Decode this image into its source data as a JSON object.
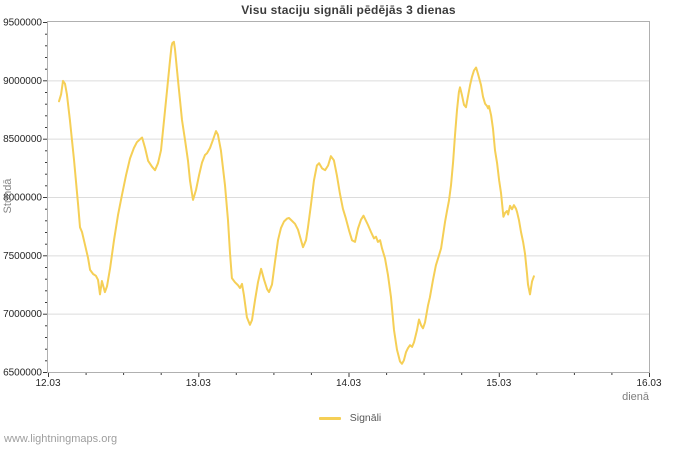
{
  "watermark": "www.lightningmaps.org",
  "chart_data": {
    "type": "line",
    "title": "Visu staciju signāli pēdējās 3 dienas",
    "ylabel": "Stundā",
    "xlabel": "dienā",
    "legend_position": "bottom-center",
    "grid": "horizontal",
    "xlim": [
      0,
      4
    ],
    "ylim": [
      6500000,
      9500000
    ],
    "x_tick_labels": [
      "12.03",
      "13.03",
      "14.03",
      "15.03",
      "16.03"
    ],
    "x_major_step": 1,
    "x_minor_step": 0.25,
    "y_major_step": 500000,
    "y_minor_step": 100000,
    "colors": {
      "line": "#f5cf56",
      "grid": "#dcdcdc",
      "border": "#b0b0b0",
      "tick": "#3a3a3a",
      "tick_label": "#262626"
    },
    "series": [
      {
        "name": "Signāli",
        "color": "#f5cf56",
        "points": [
          [
            0.073,
            8820000
          ],
          [
            0.087,
            8880000
          ],
          [
            0.1,
            8995000
          ],
          [
            0.113,
            8970000
          ],
          [
            0.126,
            8880000
          ],
          [
            0.146,
            8660000
          ],
          [
            0.173,
            8320000
          ],
          [
            0.2,
            7935000
          ],
          [
            0.213,
            7740000
          ],
          [
            0.226,
            7700000
          ],
          [
            0.246,
            7590000
          ],
          [
            0.266,
            7480000
          ],
          [
            0.28,
            7375000
          ],
          [
            0.3,
            7340000
          ],
          [
            0.319,
            7325000
          ],
          [
            0.333,
            7290000
          ],
          [
            0.346,
            7165000
          ],
          [
            0.359,
            7280000
          ],
          [
            0.379,
            7185000
          ],
          [
            0.393,
            7235000
          ],
          [
            0.413,
            7390000
          ],
          [
            0.439,
            7630000
          ],
          [
            0.466,
            7845000
          ],
          [
            0.492,
            8015000
          ],
          [
            0.519,
            8185000
          ],
          [
            0.546,
            8330000
          ],
          [
            0.572,
            8420000
          ],
          [
            0.592,
            8470000
          ],
          [
            0.612,
            8495000
          ],
          [
            0.626,
            8510000
          ],
          [
            0.646,
            8420000
          ],
          [
            0.666,
            8310000
          ],
          [
            0.692,
            8260000
          ],
          [
            0.712,
            8230000
          ],
          [
            0.732,
            8290000
          ],
          [
            0.752,
            8400000
          ],
          [
            0.772,
            8655000
          ],
          [
            0.792,
            8910000
          ],
          [
            0.812,
            9170000
          ],
          [
            0.822,
            9290000
          ],
          [
            0.828,
            9320000
          ],
          [
            0.838,
            9330000
          ],
          [
            0.845,
            9265000
          ],
          [
            0.865,
            9000000
          ],
          [
            0.892,
            8660000
          ],
          [
            0.912,
            8490000
          ],
          [
            0.932,
            8310000
          ],
          [
            0.945,
            8140000
          ],
          [
            0.965,
            7975000
          ],
          [
            0.985,
            8060000
          ],
          [
            1.005,
            8185000
          ],
          [
            1.025,
            8295000
          ],
          [
            1.045,
            8360000
          ],
          [
            1.058,
            8375000
          ],
          [
            1.078,
            8420000
          ],
          [
            1.098,
            8490000
          ],
          [
            1.118,
            8565000
          ],
          [
            1.131,
            8535000
          ],
          [
            1.151,
            8400000
          ],
          [
            1.178,
            8100000
          ],
          [
            1.198,
            7800000
          ],
          [
            1.211,
            7520000
          ],
          [
            1.224,
            7305000
          ],
          [
            1.244,
            7270000
          ],
          [
            1.264,
            7245000
          ],
          [
            1.278,
            7220000
          ],
          [
            1.291,
            7255000
          ],
          [
            1.304,
            7160000
          ],
          [
            1.324,
            6970000
          ],
          [
            1.344,
            6905000
          ],
          [
            1.358,
            6945000
          ],
          [
            1.378,
            7115000
          ],
          [
            1.398,
            7270000
          ],
          [
            1.418,
            7385000
          ],
          [
            1.438,
            7290000
          ],
          [
            1.458,
            7210000
          ],
          [
            1.471,
            7185000
          ],
          [
            1.491,
            7250000
          ],
          [
            1.511,
            7445000
          ],
          [
            1.531,
            7630000
          ],
          [
            1.551,
            7735000
          ],
          [
            1.571,
            7790000
          ],
          [
            1.591,
            7815000
          ],
          [
            1.604,
            7820000
          ],
          [
            1.624,
            7795000
          ],
          [
            1.644,
            7770000
          ],
          [
            1.664,
            7720000
          ],
          [
            1.684,
            7630000
          ],
          [
            1.697,
            7570000
          ],
          [
            1.717,
            7630000
          ],
          [
            1.73,
            7735000
          ],
          [
            1.75,
            7930000
          ],
          [
            1.77,
            8140000
          ],
          [
            1.79,
            8270000
          ],
          [
            1.804,
            8290000
          ],
          [
            1.824,
            8245000
          ],
          [
            1.844,
            8230000
          ],
          [
            1.864,
            8270000
          ],
          [
            1.883,
            8350000
          ],
          [
            1.903,
            8315000
          ],
          [
            1.923,
            8185000
          ],
          [
            1.943,
            8030000
          ],
          [
            1.963,
            7900000
          ],
          [
            1.983,
            7815000
          ],
          [
            2.003,
            7715000
          ],
          [
            2.023,
            7630000
          ],
          [
            2.043,
            7615000
          ],
          [
            2.063,
            7730000
          ],
          [
            2.083,
            7805000
          ],
          [
            2.1,
            7840000
          ],
          [
            2.13,
            7760000
          ],
          [
            2.15,
            7700000
          ],
          [
            2.17,
            7645000
          ],
          [
            2.183,
            7660000
          ],
          [
            2.196,
            7615000
          ],
          [
            2.21,
            7630000
          ],
          [
            2.223,
            7560000
          ],
          [
            2.243,
            7475000
          ],
          [
            2.263,
            7330000
          ],
          [
            2.283,
            7140000
          ],
          [
            2.303,
            6860000
          ],
          [
            2.323,
            6690000
          ],
          [
            2.343,
            6590000
          ],
          [
            2.356,
            6570000
          ],
          [
            2.369,
            6600000
          ],
          [
            2.383,
            6670000
          ],
          [
            2.396,
            6705000
          ],
          [
            2.409,
            6730000
          ],
          [
            2.423,
            6715000
          ],
          [
            2.436,
            6755000
          ],
          [
            2.456,
            6860000
          ],
          [
            2.469,
            6950000
          ],
          [
            2.483,
            6900000
          ],
          [
            2.496,
            6875000
          ],
          [
            2.509,
            6925000
          ],
          [
            2.529,
            7070000
          ],
          [
            2.542,
            7140000
          ],
          [
            2.562,
            7285000
          ],
          [
            2.582,
            7415000
          ],
          [
            2.602,
            7500000
          ],
          [
            2.616,
            7560000
          ],
          [
            2.629,
            7670000
          ],
          [
            2.642,
            7785000
          ],
          [
            2.656,
            7885000
          ],
          [
            2.669,
            7970000
          ],
          [
            2.682,
            8100000
          ],
          [
            2.696,
            8300000
          ],
          [
            2.709,
            8530000
          ],
          [
            2.722,
            8745000
          ],
          [
            2.735,
            8900000
          ],
          [
            2.742,
            8940000
          ],
          [
            2.755,
            8875000
          ],
          [
            2.769,
            8790000
          ],
          [
            2.782,
            8770000
          ],
          [
            2.795,
            8860000
          ],
          [
            2.809,
            8960000
          ],
          [
            2.822,
            9030000
          ],
          [
            2.835,
            9085000
          ],
          [
            2.849,
            9110000
          ],
          [
            2.862,
            9055000
          ],
          [
            2.882,
            8960000
          ],
          [
            2.895,
            8860000
          ],
          [
            2.909,
            8800000
          ],
          [
            2.922,
            8780000
          ],
          [
            2.929,
            8760000
          ],
          [
            2.935,
            8780000
          ],
          [
            2.949,
            8700000
          ],
          [
            2.962,
            8585000
          ],
          [
            2.975,
            8400000
          ],
          [
            2.989,
            8290000
          ],
          [
            3.002,
            8145000
          ],
          [
            3.015,
            8035000
          ],
          [
            3.031,
            7830000
          ],
          [
            3.042,
            7865000
          ],
          [
            3.055,
            7880000
          ],
          [
            3.062,
            7850000
          ],
          [
            3.075,
            7925000
          ],
          [
            3.088,
            7895000
          ],
          [
            3.101,
            7930000
          ],
          [
            3.115,
            7900000
          ],
          [
            3.122,
            7870000
          ],
          [
            3.135,
            7800000
          ],
          [
            3.148,
            7700000
          ],
          [
            3.162,
            7615000
          ],
          [
            3.175,
            7515000
          ],
          [
            3.188,
            7345000
          ],
          [
            3.195,
            7250000
          ],
          [
            3.208,
            7165000
          ],
          [
            3.221,
            7275000
          ],
          [
            3.234,
            7320000
          ]
        ]
      }
    ]
  }
}
